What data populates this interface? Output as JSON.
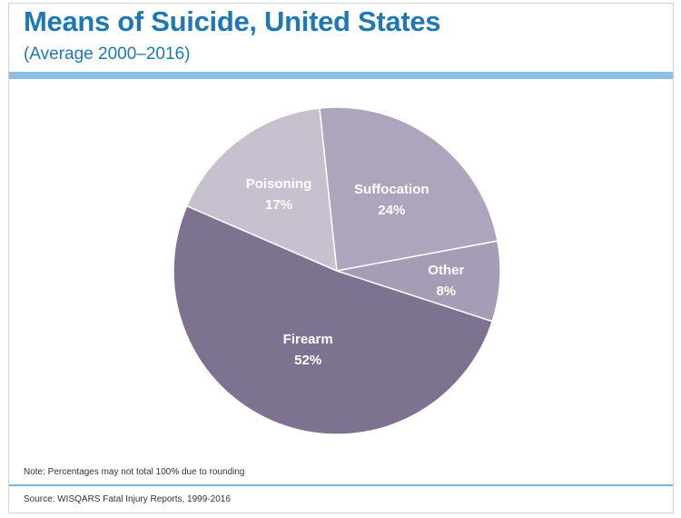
{
  "header": {
    "title": "Means of Suicide, United States",
    "subtitle": "(Average 2000–2016)"
  },
  "chart_data": {
    "type": "pie",
    "title": "Means of Suicide, United States",
    "subtitle": "(Average 2000–2016)",
    "categories": [
      "Firearm",
      "Poisoning",
      "Suffocation",
      "Other"
    ],
    "values": [
      52,
      17,
      24,
      8
    ],
    "value_labels": [
      "52%",
      "17%",
      "24%",
      "8%"
    ],
    "colors": [
      "#7d7290",
      "#c6c0cf",
      "#aca5bc",
      "#a59cb5"
    ],
    "unit": "%"
  },
  "footer": {
    "note": "Note: Percentages may not total 100% due to rounding",
    "source": "Source: WISQARS Fatal Injury Reports, 1999-2016"
  }
}
